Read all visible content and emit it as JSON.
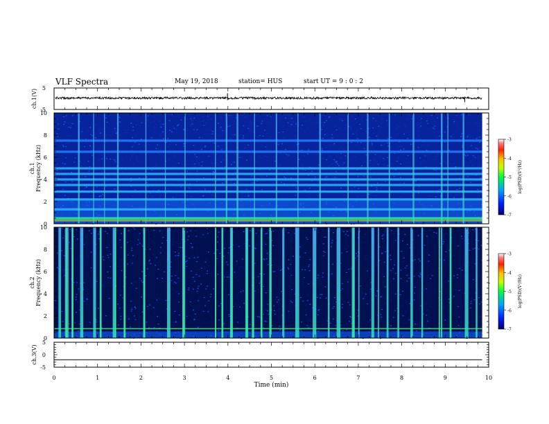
{
  "header": {
    "title": "VLF Spectra",
    "date": "May 19, 2018",
    "station": "station= HUS",
    "start": "start  UT  =   9 : 0  : 2"
  },
  "chart_data": [
    {
      "type": "line",
      "panel": "ch1-waveform",
      "ylabel": "ch.1(V)",
      "ylim": [
        -5,
        5
      ],
      "yticks": [
        "5",
        "-5"
      ],
      "x": [
        0,
        9.85
      ],
      "values": [
        0,
        0
      ],
      "note": "noisy trace centered near 0 V"
    },
    {
      "type": "heatmap",
      "panel": "ch1-spectrogram",
      "ylabel": "ch.1",
      "ylabel2": "Frequency  (kHz)",
      "ylim": [
        0,
        10
      ],
      "yticks": [
        "0",
        "2",
        "4",
        "6",
        "8",
        "10"
      ],
      "xlim": [
        0,
        9.85
      ],
      "colorbar": {
        "label": "log(PSD)(V²/Hz)",
        "ticks": [
          "-3",
          "-4",
          "-5",
          "-6",
          "-7"
        ],
        "range": [
          -7,
          -3
        ]
      },
      "bands_khz": [
        0.5,
        1.3,
        2.2,
        2.9,
        3.5,
        4.0,
        4.5,
        5.0,
        6.5,
        7.5
      ],
      "spikes_min": [
        0.55,
        0.9,
        1.15,
        1.45,
        2.1,
        2.55,
        3.0,
        3.7,
        3.95,
        4.2,
        4.6,
        5.1,
        5.6,
        6.1,
        6.75,
        7.2,
        7.7,
        8.25,
        8.9,
        9.05,
        9.4
      ]
    },
    {
      "type": "heatmap",
      "panel": "ch2-spectrogram",
      "ylabel": "ch.2",
      "ylabel2": "Frequency  (kHz)",
      "ylim": [
        0,
        10
      ],
      "yticks": [
        "0",
        "2",
        "4",
        "6",
        "8",
        "10"
      ],
      "xlim": [
        0,
        9.85
      ],
      "colorbar": {
        "label": "log(PSD)(V²/Hz)",
        "ticks": [
          "-3",
          "-4",
          "-5",
          "-6",
          "-7"
        ],
        "range": [
          -7,
          -3
        ]
      },
      "spikes_min": [
        0.1,
        0.25,
        0.4,
        0.6,
        0.9,
        1.05,
        1.35,
        1.4,
        1.6,
        2.05,
        2.6,
        2.95,
        3.7,
        3.85,
        4.05,
        4.4,
        4.55,
        4.75,
        4.95,
        5.25,
        5.55,
        5.6,
        5.95,
        6.3,
        6.5,
        6.85,
        7.0,
        7.3,
        7.45,
        7.65,
        7.9,
        8.2,
        8.45,
        8.85,
        8.9,
        9.1,
        9.45,
        9.7
      ]
    },
    {
      "type": "line",
      "panel": "ch3-waveform",
      "ylabel": "ch.3(V)",
      "ylim": [
        -5,
        5
      ],
      "yticks": [
        "5",
        "0",
        "-5"
      ],
      "x": [
        0,
        9.85
      ],
      "values": [
        -2,
        -2
      ]
    },
    {
      "type": "axis",
      "xlabel": "Time  (min)",
      "xlim": [
        0,
        10
      ],
      "xticks": [
        "0",
        "1",
        "2",
        "3",
        "4",
        "5",
        "6",
        "7",
        "8",
        "9",
        "10"
      ]
    }
  ]
}
